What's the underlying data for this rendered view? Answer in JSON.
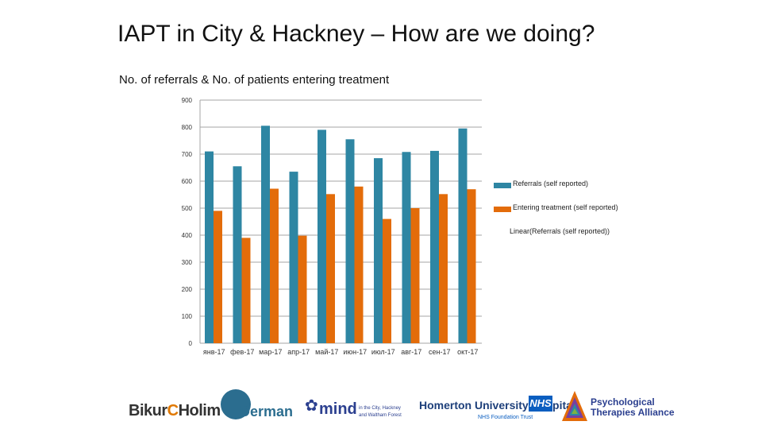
{
  "slide": {
    "title": "IAPT in City & Hackney – How are we doing?"
  },
  "colors": {
    "referrals": "#2e86a3",
    "treatment": "#e36c0a",
    "grid": "#a6a6a6"
  },
  "chart_data": {
    "type": "bar",
    "title": "No. of referrals & No. of patients entering treatment",
    "xlabel": "",
    "ylabel": "",
    "ylim": [
      0,
      900
    ],
    "yticks": [
      0,
      100,
      200,
      300,
      400,
      500,
      600,
      700,
      800,
      900
    ],
    "grid": true,
    "legend_position": "right",
    "categories": [
      "янв-17",
      "фев-17",
      "мар-17",
      "апр-17",
      "май-17",
      "июн-17",
      "июл-17",
      "авг-17",
      "сен-17",
      "окт-17"
    ],
    "series": [
      {
        "name": "Referrals (self reported)",
        "values": [
          710,
          655,
          805,
          635,
          790,
          755,
          685,
          708,
          712,
          795
        ]
      },
      {
        "name": "Entering treatment (self reported)",
        "values": [
          490,
          390,
          572,
          398,
          552,
          580,
          460,
          500,
          552,
          570
        ]
      }
    ],
    "trendline_label": "Linear(Referrals (self reported))"
  },
  "logos": {
    "bikur_pre": "Bikur",
    "bikur_c": "C",
    "bikur_post": "Holim",
    "derman": "Derman",
    "mind": "mind",
    "mind_sub1": "in the City, Hackney",
    "mind_sub2": "and Waltham Forest",
    "homerton": "Homerton University Hospital",
    "nhs": "NHS",
    "nhs_sub": "NHS Foundation Trust",
    "pta_line1": "Psychological",
    "pta_line2": "Therapies Alliance"
  }
}
